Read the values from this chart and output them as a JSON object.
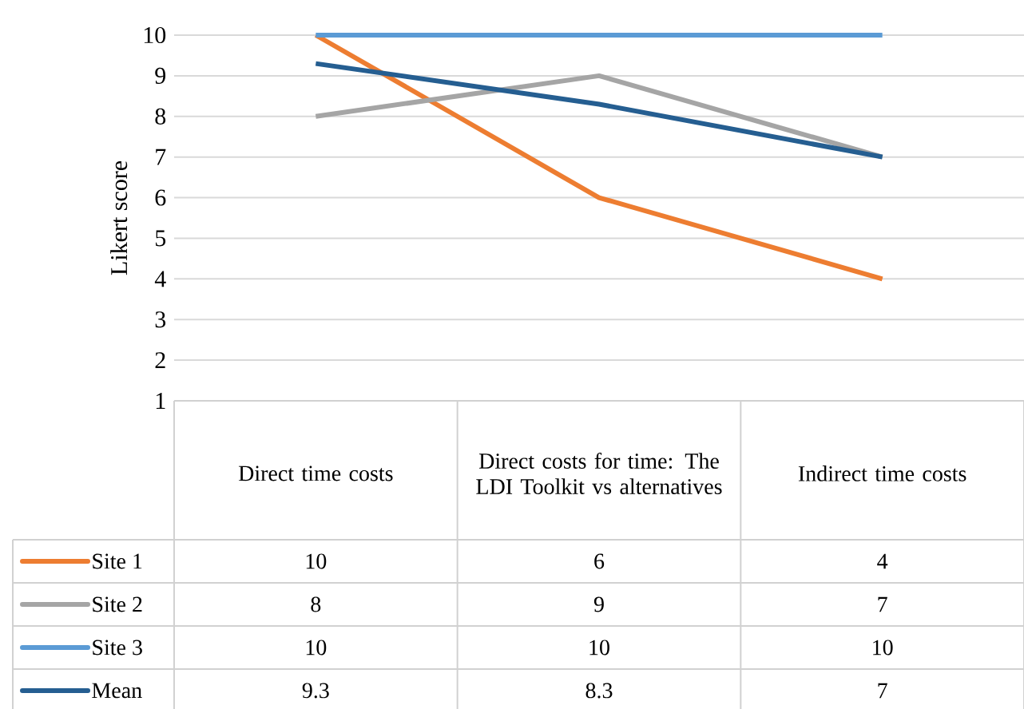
{
  "chart_data": {
    "type": "line",
    "ylabel": "Likert score",
    "categories": [
      "Direct time costs",
      "Direct costs for time: The LDI Toolkit vs alternatives",
      "Indirect time costs"
    ],
    "series": [
      {
        "name": "Site 1",
        "color": "#ed7d31",
        "values": [
          10,
          6,
          4
        ]
      },
      {
        "name": "Site 2",
        "color": "#a5a5a5",
        "values": [
          8,
          9,
          7
        ]
      },
      {
        "name": "Site 3",
        "color": "#5b9bd5",
        "values": [
          10,
          10,
          10
        ]
      },
      {
        "name": "Mean",
        "color": "#255e91",
        "values": [
          9.3,
          8.3,
          7
        ]
      }
    ],
    "ylim": [
      1,
      10
    ],
    "yticks": [
      1,
      2,
      3,
      4,
      5,
      6,
      7,
      8,
      9,
      10
    ],
    "grid": "y",
    "legend": "bottom",
    "data_labels": true,
    "marker": "none",
    "line_style": "solid"
  }
}
